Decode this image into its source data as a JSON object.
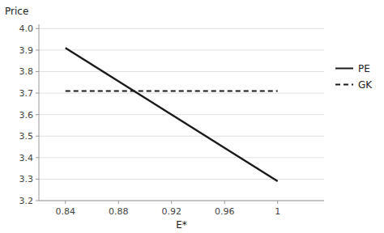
{
  "chart_data": {
    "type": "line",
    "x": [
      0.84,
      1.0
    ],
    "series": [
      {
        "name": "PE",
        "color": "#1a1a1a",
        "line_style": "solid",
        "values": [
          3.91,
          3.29
        ]
      },
      {
        "name": "GK",
        "color": "#1a1a1a",
        "line_style": "dashed",
        "values": [
          3.71,
          3.71
        ]
      }
    ],
    "xlabel": "E*",
    "ylabel": "Price",
    "xlim": [
      0.82,
      1.035
    ],
    "ylim": [
      3.2,
      4.02
    ],
    "xticks": [
      0.84,
      0.88,
      0.92,
      0.96,
      1.0
    ],
    "yticks": [
      3.2,
      3.3,
      3.4,
      3.5,
      3.6,
      3.7,
      3.8,
      3.9,
      {
        "value": 4.0,
        "label": "4.0"
      }
    ],
    "grid": true,
    "legend": "right"
  }
}
